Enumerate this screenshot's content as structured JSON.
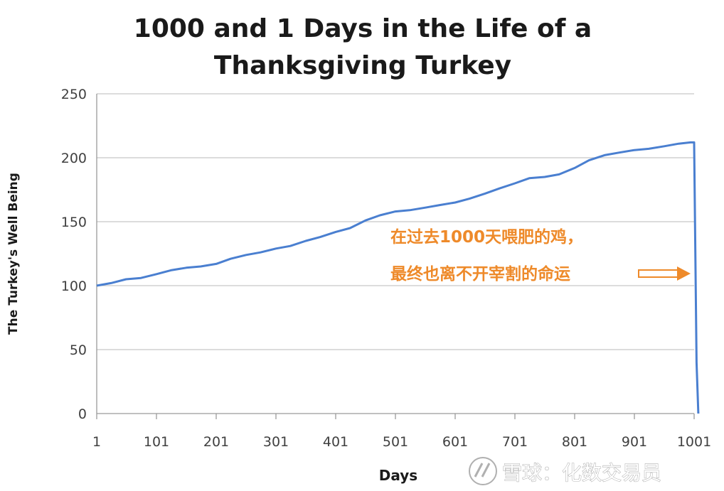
{
  "chart_data": {
    "type": "line",
    "title": [
      "1000 and 1 Days in the Life of a",
      "Thanksgiving Turkey"
    ],
    "xlabel": "Days",
    "ylabel": "The Turkey's Well Being",
    "xlim": [
      1,
      1001
    ],
    "ylim": [
      0,
      250
    ],
    "x_ticks": [
      "1",
      "101",
      "201",
      "301",
      "401",
      "501",
      "601",
      "701",
      "801",
      "901",
      "1001"
    ],
    "y_ticks": [
      "0",
      "50",
      "100",
      "150",
      "200",
      "250"
    ],
    "grid": true,
    "series": [
      {
        "color": "#4a7fd0",
        "x": [
          1,
          25,
          50,
          75,
          101,
          125,
          151,
          175,
          201,
          225,
          251,
          275,
          301,
          325,
          351,
          375,
          401,
          425,
          451,
          475,
          501,
          525,
          551,
          575,
          601,
          625,
          651,
          675,
          701,
          725,
          751,
          775,
          801,
          825,
          851,
          875,
          901,
          925,
          951,
          975,
          995,
          1001,
          1005,
          1008
        ],
        "y": [
          100,
          102,
          105,
          106,
          109,
          112,
          114,
          115,
          117,
          121,
          124,
          126,
          129,
          131,
          135,
          138,
          142,
          145,
          151,
          155,
          158,
          159,
          161,
          163,
          165,
          168,
          172,
          176,
          180,
          184,
          185,
          187,
          192,
          198,
          202,
          204,
          206,
          207,
          209,
          211,
          212,
          212,
          40,
          0
        ]
      }
    ],
    "annotations": [
      "在过去1000天喂肥的鸡，",
      "最终也离不开宰割的命运"
    ]
  },
  "watermark": "雪球：化数交易员"
}
